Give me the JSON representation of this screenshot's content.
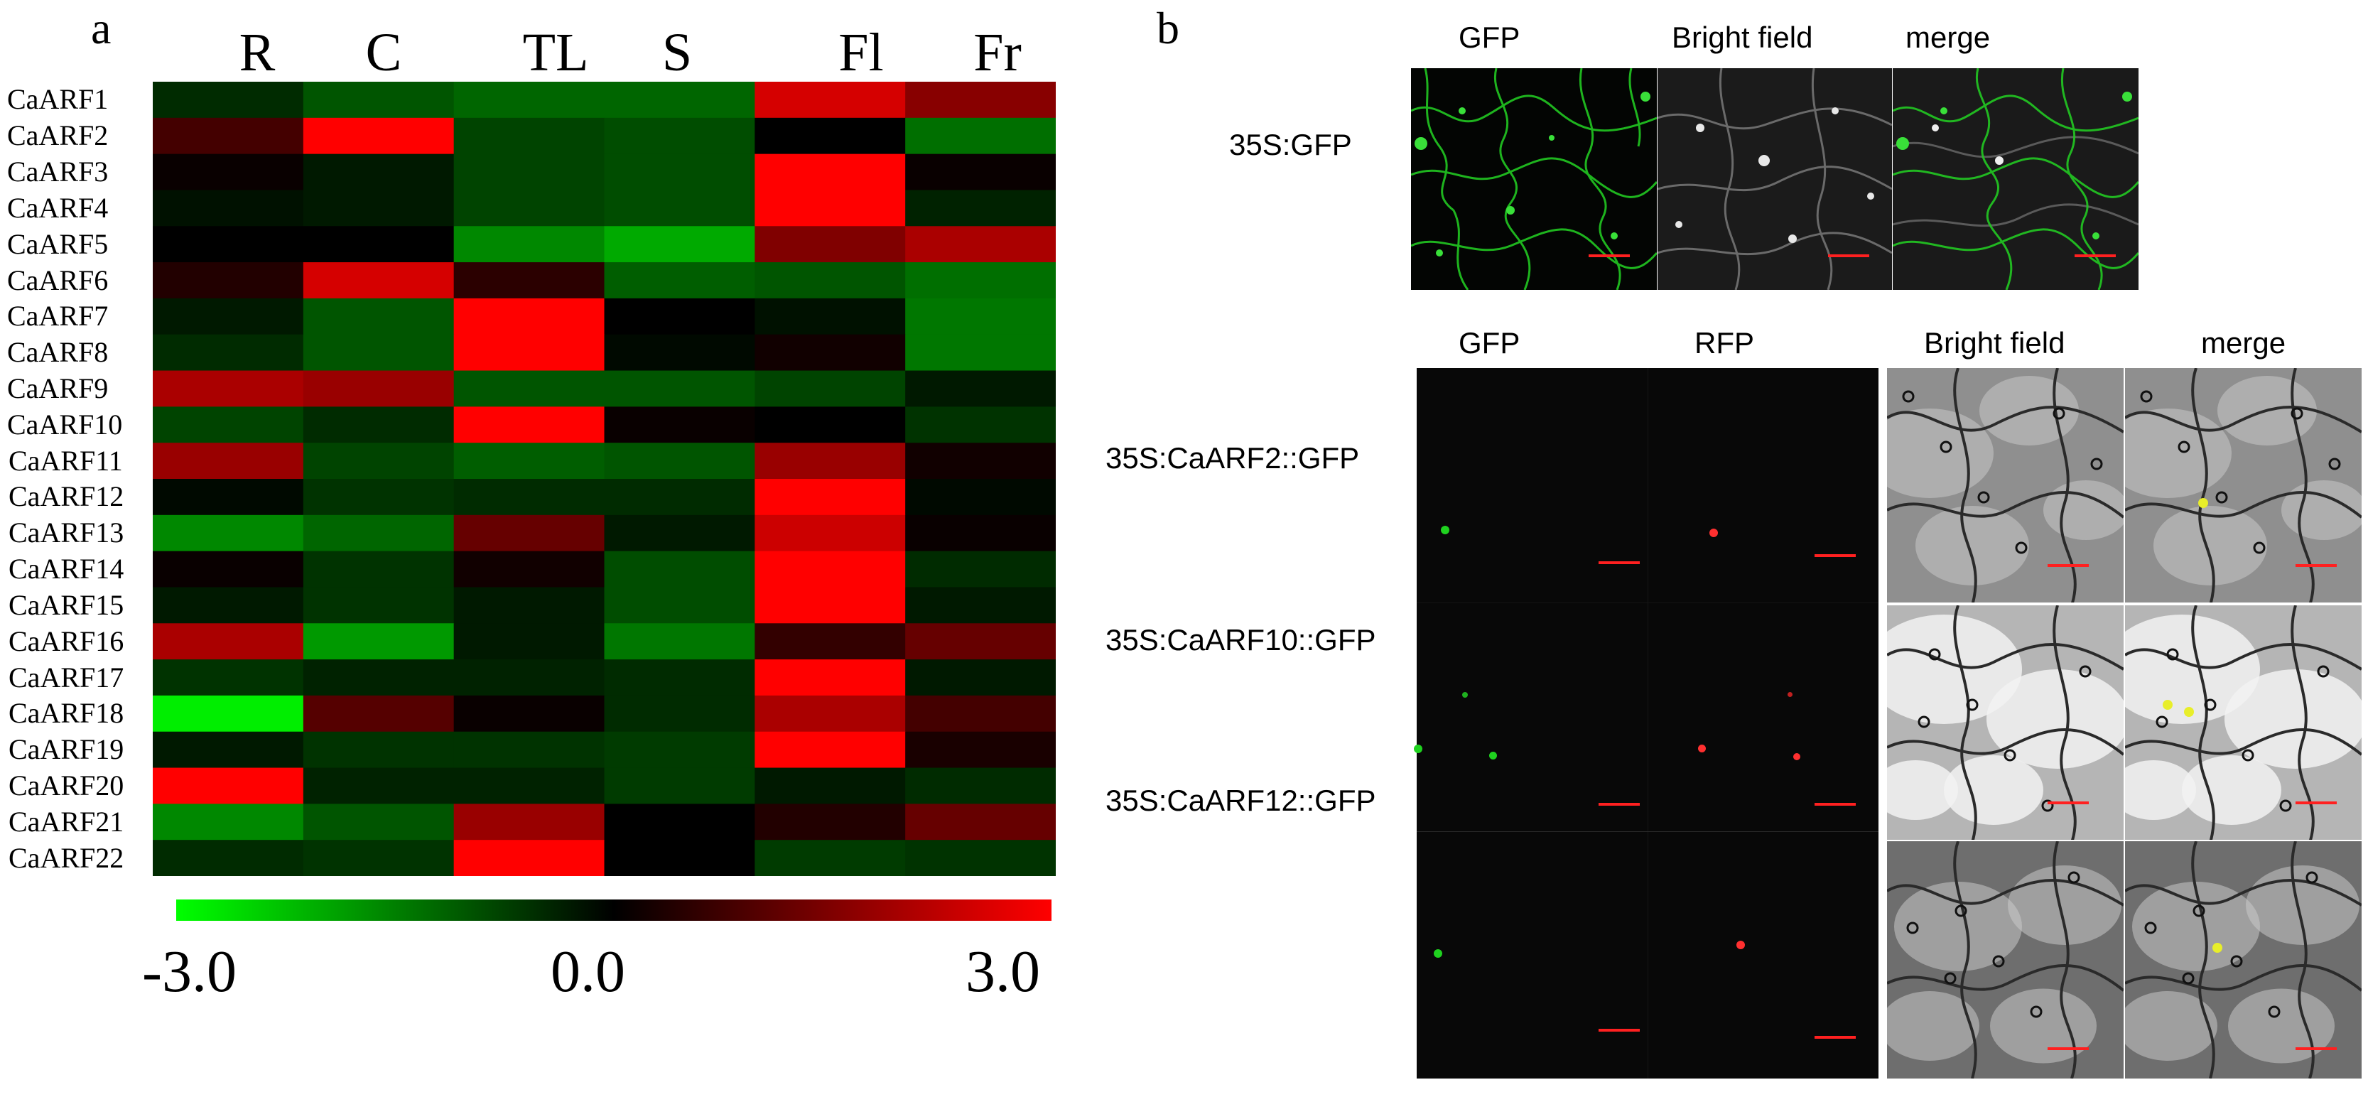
{
  "panel_a": {
    "letter": "a",
    "heatmap": {
      "columns": [
        "R",
        "C",
        "TL",
        "S",
        "Fl",
        "Fr"
      ],
      "rows": [
        "CaARF1",
        "CaARF2",
        "CaARF3",
        "CaARF4",
        "CaARF5",
        "CaARF6",
        "CaARF7",
        "CaARF8",
        "CaARF9",
        "CaARF10",
        "CaARF11",
        "CaARF12",
        "CaARF13",
        "CaARF14",
        "CaARF15",
        "CaARF16",
        "CaARF17",
        "CaARF18",
        "CaARF19",
        "CaARF20",
        "CaARF21",
        "CaARF22"
      ],
      "values": [
        [
          -0.5,
          -1.0,
          -1.2,
          -1.2,
          2.5,
          1.6
        ],
        [
          0.8,
          3.0,
          -0.8,
          -0.9,
          0.0,
          -1.3
        ],
        [
          0.1,
          -0.3,
          -0.8,
          -0.9,
          3.0,
          0.1
        ],
        [
          -0.2,
          -0.3,
          -0.8,
          -0.9,
          3.0,
          -0.4
        ],
        [
          0.0,
          0.0,
          -1.6,
          -2.0,
          1.5,
          2.0
        ],
        [
          0.4,
          2.5,
          0.5,
          -1.1,
          -1.0,
          -1.3
        ],
        [
          -0.3,
          -1.0,
          3.0,
          0.0,
          -0.2,
          -1.4
        ],
        [
          -0.5,
          -1.0,
          3.0,
          -0.1,
          0.2,
          -1.4
        ],
        [
          2.0,
          1.8,
          -1.0,
          -1.0,
          -0.8,
          -0.3
        ],
        [
          -0.8,
          -0.5,
          3.0,
          0.1,
          0.0,
          -0.6
        ],
        [
          1.8,
          -0.8,
          -1.1,
          -1.0,
          1.8,
          0.2
        ],
        [
          -0.1,
          -0.6,
          -0.5,
          -0.5,
          3.0,
          -0.1
        ],
        [
          -1.6,
          -1.2,
          1.2,
          -0.3,
          2.4,
          0.1
        ],
        [
          0.1,
          -0.6,
          0.2,
          -0.9,
          3.0,
          -0.5
        ],
        [
          -0.3,
          -0.6,
          -0.3,
          -0.9,
          3.0,
          -0.3
        ],
        [
          2.0,
          -1.8,
          -0.3,
          -1.4,
          0.6,
          1.2
        ],
        [
          -0.6,
          -0.4,
          -0.4,
          -0.5,
          3.0,
          -0.3
        ],
        [
          -2.8,
          1.0,
          0.1,
          -0.5,
          2.0,
          0.8
        ],
        [
          -0.3,
          -0.6,
          -0.6,
          -0.7,
          3.0,
          0.3
        ],
        [
          3.0,
          -0.4,
          -0.4,
          -0.7,
          -0.3,
          -0.5
        ],
        [
          -1.6,
          -1.0,
          1.8,
          0.0,
          0.4,
          1.2
        ],
        [
          -0.5,
          -0.6,
          3.0,
          0.0,
          -0.7,
          -0.6
        ]
      ],
      "scale": {
        "min": -3.0,
        "max": 3.0,
        "ticks": [
          "-3.0",
          "0.0",
          "3.0"
        ],
        "low_color": "#00ff00",
        "mid_color": "#000000",
        "high_color": "#ff0000"
      }
    }
  },
  "panel_b": {
    "letter": "b",
    "top": {
      "headers": [
        "GFP",
        "Bright field",
        "merge"
      ],
      "row_label": "35S:GFP"
    },
    "bottom": {
      "headers": [
        "GFP",
        "RFP",
        "Bright field",
        "merge"
      ],
      "row_labels": [
        "35S:CaARF2::GFP",
        "35S:CaARF10::GFP",
        "35S:CaARF12::GFP"
      ]
    },
    "colors": {
      "gfp": "#1fd21f",
      "rfp": "#ff3030",
      "merge_dot": "#e8ee2a",
      "scale_bar": "#ff2020"
    }
  }
}
